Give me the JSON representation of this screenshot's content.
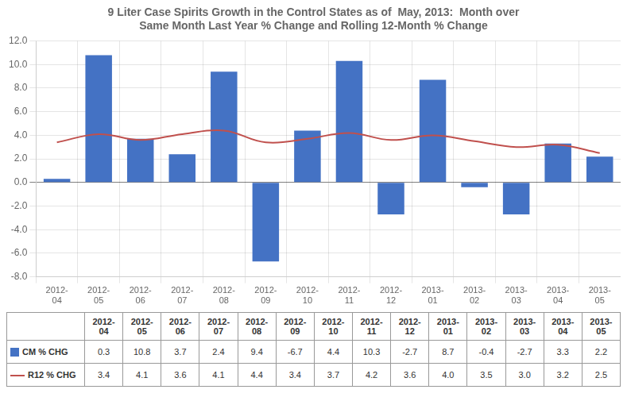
{
  "chart_data": {
    "type": "bar",
    "title": "9 Liter Case Spirits Growth in the Control States as of  May, 2013:  Month over\nSame Month Last Year % Change and Rolling 12-Month % Change",
    "categories": [
      "2012-\n04",
      "2012-\n05",
      "2012-\n06",
      "2012-\n07",
      "2012-\n08",
      "2012-\n09",
      "2012-\n10",
      "2012-\n11",
      "2012-\n12",
      "2013-\n01",
      "2013-\n02",
      "2013-\n03",
      "2013-\n04",
      "2013-\n05"
    ],
    "series": [
      {
        "name": "CM % CHG",
        "type": "bar",
        "color": "#4472C4",
        "values": [
          0.3,
          10.8,
          3.7,
          2.4,
          9.4,
          -6.7,
          4.4,
          10.3,
          -2.7,
          8.7,
          -0.4,
          -2.7,
          3.3,
          2.2
        ],
        "value_labels": [
          "0.3",
          "10.8",
          "3.7",
          "2.4",
          "9.4",
          "-6.7",
          "4.4",
          "10.3",
          "-2.7",
          "8.7",
          "-0.4",
          "-2.7",
          "3.3",
          "2.2"
        ]
      },
      {
        "name": "R12 % CHG",
        "type": "line",
        "color": "#C0504D",
        "values": [
          3.4,
          4.1,
          3.6,
          4.1,
          4.4,
          3.4,
          3.7,
          4.2,
          3.6,
          4.0,
          3.5,
          3.0,
          3.2,
          2.5
        ],
        "value_labels": [
          "3.4",
          "4.1",
          "3.6",
          "4.1",
          "4.4",
          "3.4",
          "3.7",
          "4.2",
          "3.6",
          "4.0",
          "3.5",
          "3.0",
          "3.2",
          "2.5"
        ]
      }
    ],
    "ylim": [
      -8.0,
      12.0
    ],
    "yticks": [
      {
        "value": -8.0,
        "label": "-8.0"
      },
      {
        "value": -6.0,
        "label": "-6.0"
      },
      {
        "value": -4.0,
        "label": "-4.0"
      },
      {
        "value": -2.0,
        "label": "-2.0"
      },
      {
        "value": 0.0,
        "label": "0.0"
      },
      {
        "value": 2.0,
        "label": "2.0"
      },
      {
        "value": 4.0,
        "label": "4.0"
      },
      {
        "value": 6.0,
        "label": "6.0"
      },
      {
        "value": 8.0,
        "label": "8.0"
      },
      {
        "value": 10.0,
        "label": "10.0"
      },
      {
        "value": 12.0,
        "label": "12.0"
      }
    ],
    "grid": true
  }
}
